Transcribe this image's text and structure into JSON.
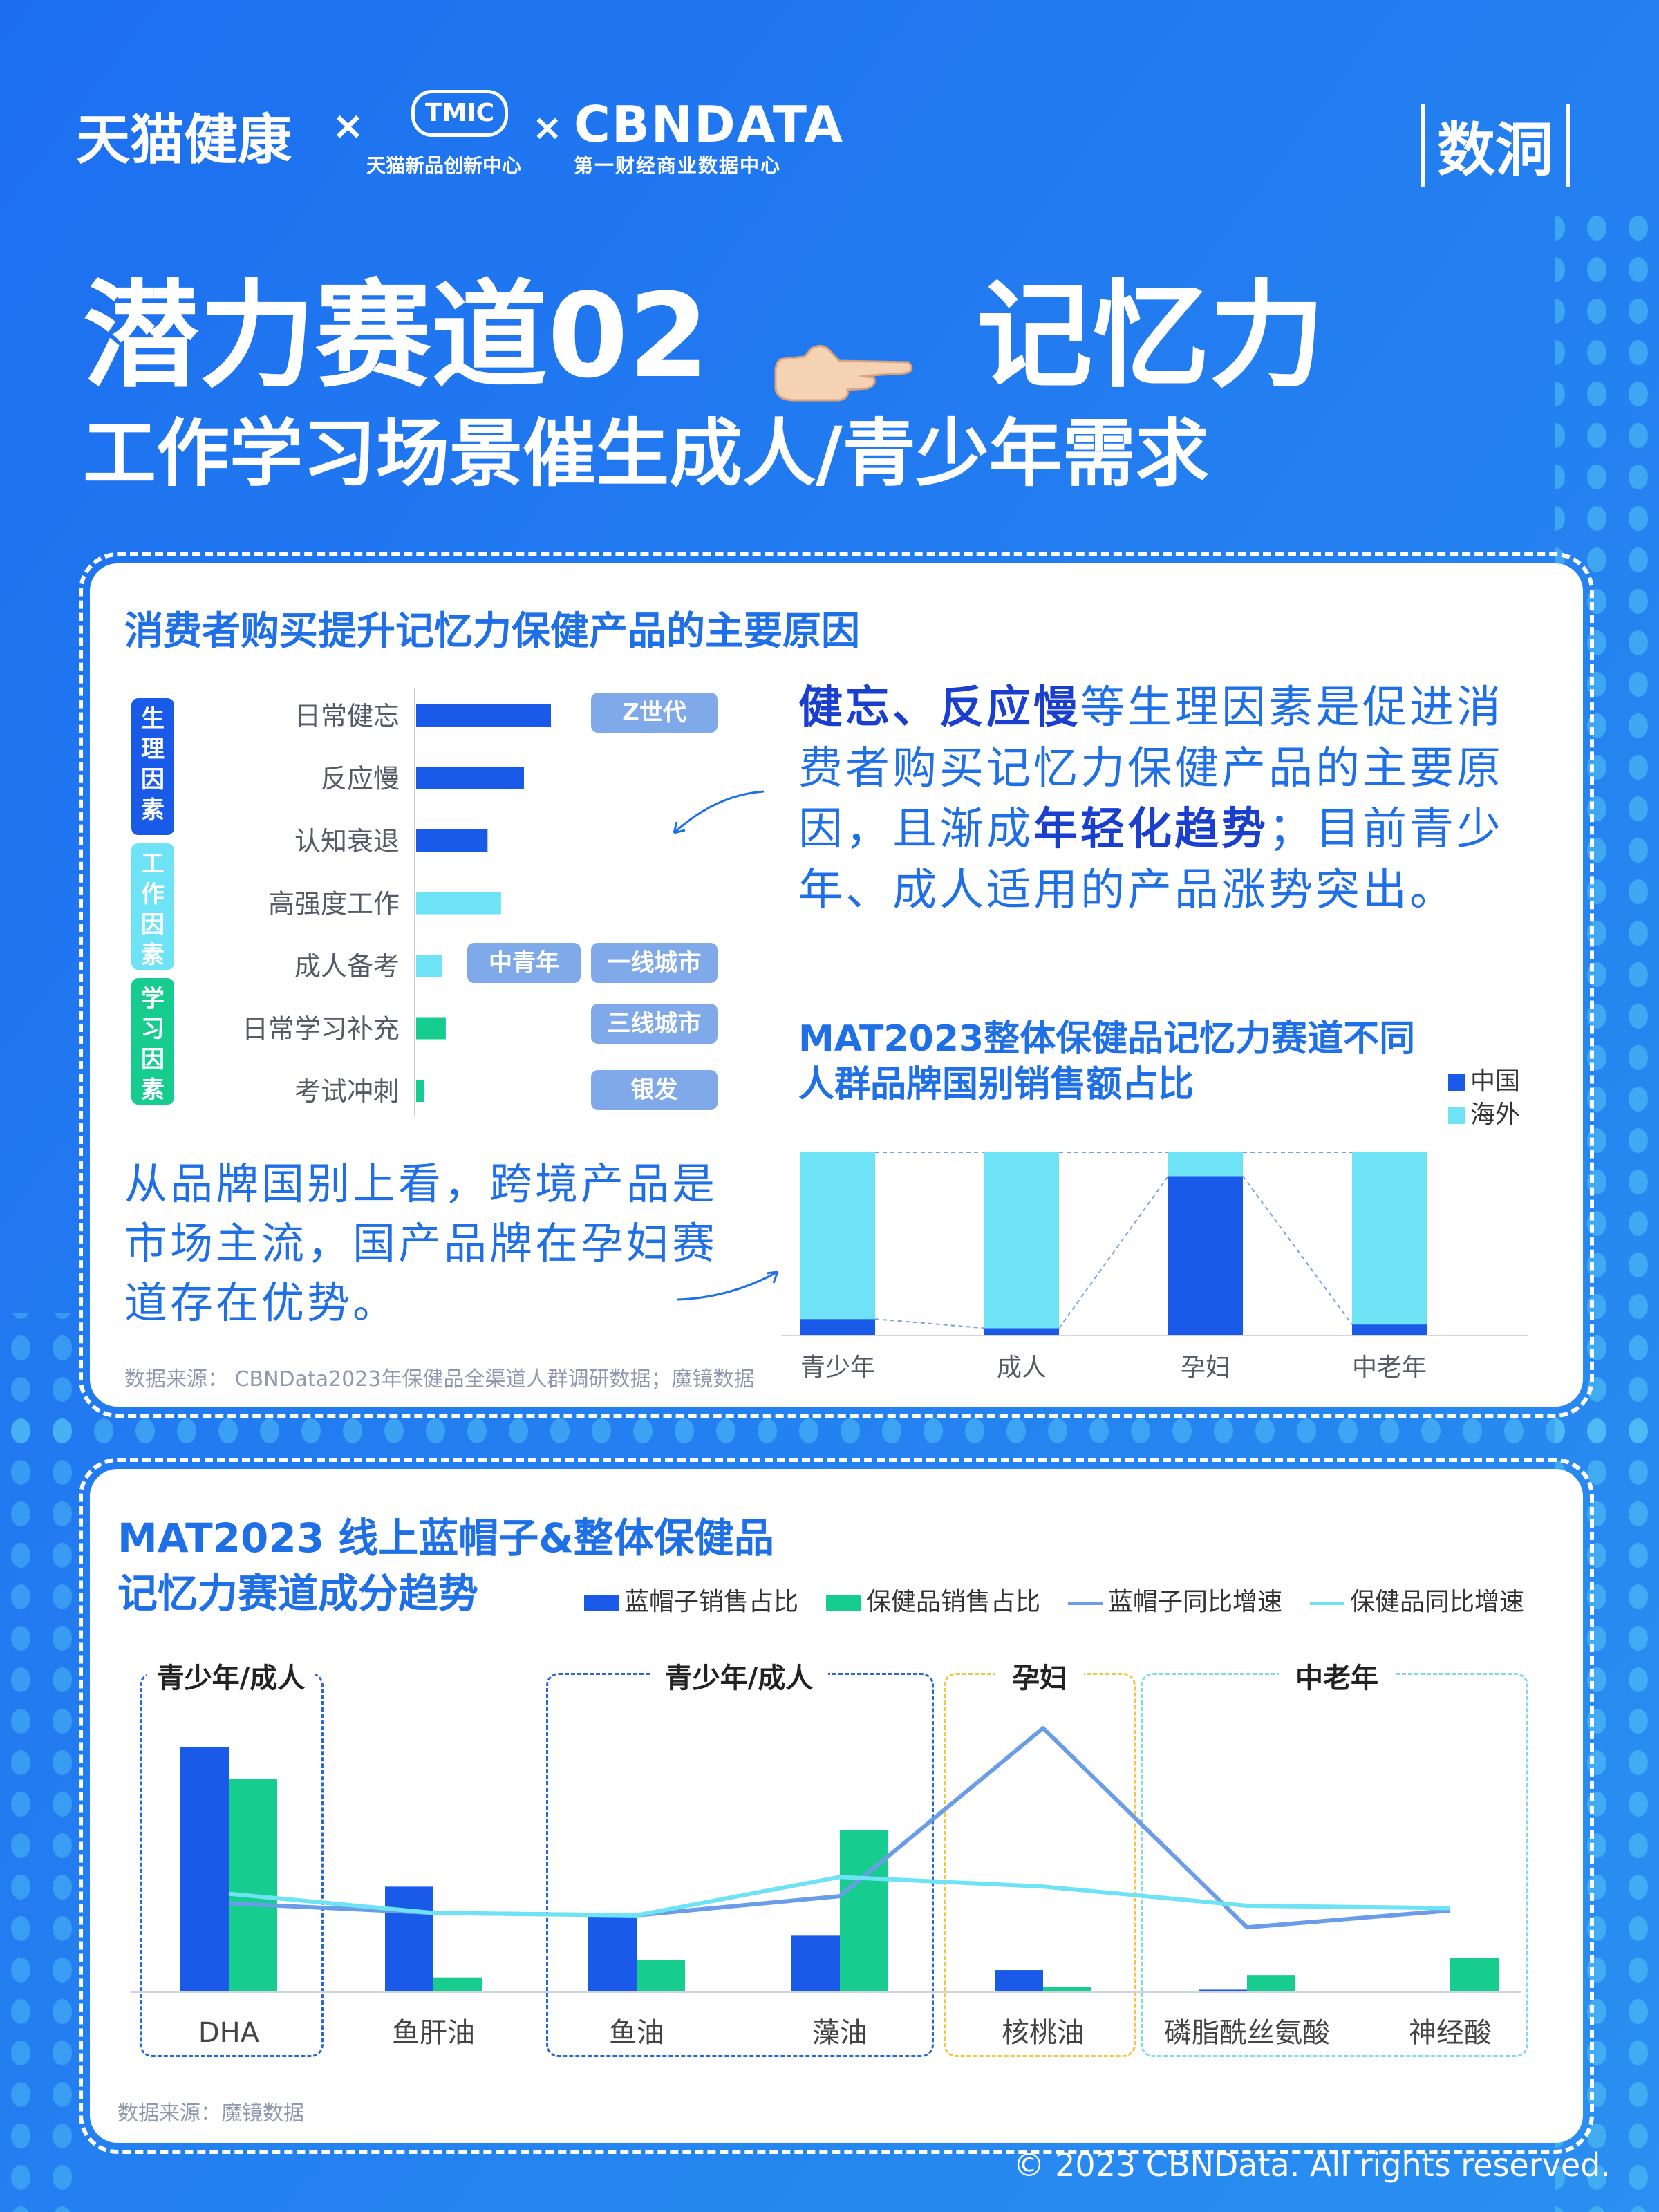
{
  "header": {
    "logo_tmall": "天猫健康",
    "sep1": "×",
    "logo_tmic": "TMIC",
    "logo_tmic_sub": "天猫新品创新中心",
    "sep2": "×",
    "logo_cbn": "CBNDATA",
    "logo_cbn_sub": "第一财经商业数据中心",
    "logo_shudong": "数洞"
  },
  "title": {
    "line1_left": "潜力赛道02",
    "line1_right": "记忆力",
    "line2": "工作学习场景催生成人/青少年需求"
  },
  "card1": {
    "title": "消费者购买提升记忆力保健产品的主要原因",
    "categories": [
      "生理因素",
      "工作因素",
      "学习因素"
    ],
    "tags": [
      "Z世代",
      "中青年",
      "一线城市",
      "三线城市",
      "银发"
    ],
    "insight_text": {
      "p1": "健忘、反应慢",
      "p2": "等生理因素是促进消费者购买记忆力保健产品的主要原因，且渐成",
      "p3": "年轻化趋势",
      "p4": "；目前青少年、成人适用的产品涨势突出。"
    },
    "brand_text": "从品牌国别上看，跨境产品是市场主流，国产品牌在孕妇赛道存在优势。",
    "source": "数据来源：  CBNData2023年保健品全渠道人群调研数据；魔镜数据",
    "colors": {
      "physio": "#1a5ae8",
      "work": "#6ee3f5",
      "study": "#17cc8f"
    }
  },
  "chart_data": [
    {
      "type": "bar",
      "orientation": "horizontal",
      "title": "",
      "categories": [
        "日常健忘",
        "反应慢",
        "认知衰退",
        "高强度工作",
        "成人备考",
        "日常学习补充",
        "考试冲刺"
      ],
      "values": [
        100,
        80,
        53,
        63,
        19,
        22,
        6
      ],
      "groups": [
        "生理因素",
        "生理因素",
        "生理因素",
        "工作因素",
        "工作因素",
        "学习因素",
        "学习因素"
      ],
      "grid": false
    },
    {
      "type": "bar",
      "stacked": true,
      "title": "MAT2023整体保健品记忆力赛道不同人群品牌国别销售额占比",
      "categories": [
        "青少年",
        "成人",
        "孕妇",
        "中老年"
      ],
      "series": [
        {
          "name": "中国",
          "values": [
            9,
            4,
            87,
            6
          ],
          "color": "#1a5ae8"
        },
        {
          "name": "海外",
          "values": [
            91,
            96,
            13,
            94
          ],
          "color": "#6ee3f5"
        }
      ],
      "ylim": [
        0,
        100
      ],
      "legend": "top-right"
    },
    {
      "type": "bar",
      "title": "MAT2023 线上蓝帽子&整体保健品记忆力赛道成分趋势",
      "categories": [
        "DHA",
        "鱼肝油",
        "鱼油",
        "藻油",
        "核桃油",
        "磷脂酰丝氨酸",
        "神经酸"
      ],
      "series": [
        {
          "name": "蓝帽子销售占比",
          "kind": "bar",
          "values": [
            100,
            43,
            31,
            23,
            9,
            1,
            0
          ],
          "color": "#1a5ae8"
        },
        {
          "name": "保健品销售占比",
          "kind": "bar",
          "values": [
            87,
            6,
            13,
            66,
            2,
            7,
            14
          ],
          "color": "#17cc8f"
        },
        {
          "name": "蓝帽子同比增速",
          "kind": "line",
          "values": [
            37,
            33,
            32,
            40,
            110,
            27,
            34
          ],
          "color": "#6b9ce8"
        },
        {
          "name": "保健品同比增速",
          "kind": "line",
          "values": [
            41,
            33,
            32,
            48,
            44,
            36,
            35
          ],
          "color": "#6ee3f5"
        }
      ],
      "groups": [
        {
          "label": "青少年/成人",
          "categories": [
            "DHA"
          ]
        },
        {
          "label": "青少年/成人",
          "categories": [
            "鱼油",
            "藻油"
          ]
        },
        {
          "label": "孕妇",
          "categories": [
            "核桃油"
          ]
        },
        {
          "label": "中老年",
          "categories": [
            "磷脂酰丝氨酸",
            "神经酸"
          ]
        }
      ],
      "legend": "top-right",
      "grid": false
    }
  ],
  "card2": {
    "title_line1": "MAT2023 线上蓝帽子&整体保健品",
    "title_line2": "记忆力赛道成分趋势",
    "source": "数据来源：魔镜数据"
  },
  "footer": {
    "copyright": "© 2023 CBNData. All rights reserved."
  }
}
